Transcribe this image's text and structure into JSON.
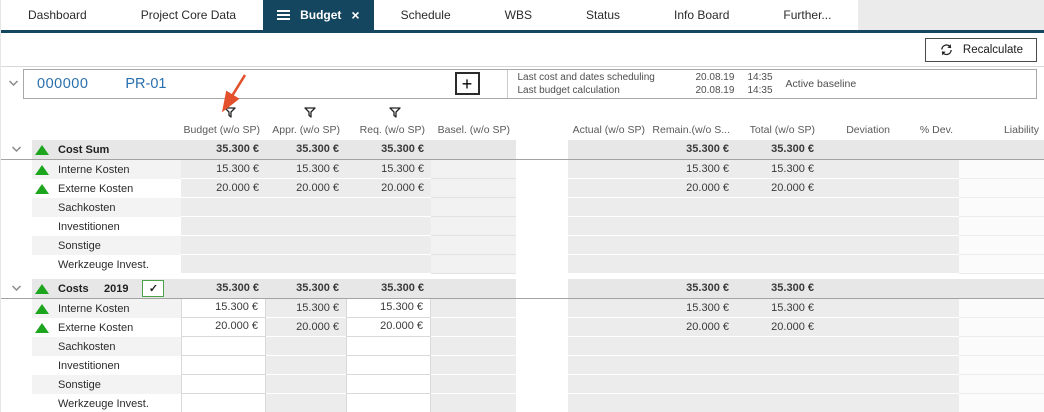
{
  "tab_bar": {
    "tabs": [
      {
        "label": "Dashboard",
        "active": false
      },
      {
        "label": "Project Core Data",
        "active": false
      },
      {
        "label": "Budget",
        "active": true
      },
      {
        "label": "Schedule",
        "active": false
      },
      {
        "label": "WBS",
        "active": false
      },
      {
        "label": "Status",
        "active": false
      },
      {
        "label": "Info Board",
        "active": false
      },
      {
        "label": "Further...",
        "active": false
      }
    ]
  },
  "toolbar": {
    "recalculate_label": "Recalculate"
  },
  "project_bar": {
    "number": "000000",
    "id": "PR-01",
    "info_rows": [
      {
        "label": "Last cost and dates scheduling",
        "date": "20.08.19",
        "time": "14:35"
      },
      {
        "label": "Last budget calculation",
        "date": "20.08.19",
        "time": "14:35"
      }
    ],
    "baseline_label": "Active baseline"
  },
  "glyphs": {
    "plus": "+",
    "check": "✓",
    "close": "×"
  },
  "grid": {
    "columns": [
      {
        "key": "budget",
        "label": "Budget (w/o SP)",
        "filter": true
      },
      {
        "key": "appr",
        "label": "Appr. (w/o SP)",
        "filter": true
      },
      {
        "key": "req",
        "label": "Req. (w/o SP)",
        "filter": true
      },
      {
        "key": "basel",
        "label": "Basel. (w/o SP)",
        "filter": false
      },
      {
        "key": "actual",
        "label": "Actual (w/o SP)",
        "filter": false
      },
      {
        "key": "remain",
        "label": "Remain.(w/o S...",
        "filter": false
      },
      {
        "key": "total",
        "label": "Total (w/o SP)",
        "filter": false
      },
      {
        "key": "deviation",
        "label": "Deviation",
        "filter": false
      },
      {
        "key": "pdev",
        "label": "% Dev.",
        "filter": false
      },
      {
        "key": "liability",
        "label": "Liability",
        "filter": false
      }
    ],
    "groups": [
      {
        "title": "Cost Sum",
        "year": "",
        "has_checkbox": false,
        "checkbox_checked": false,
        "editable": false,
        "totals": {
          "budget": "35.300 €",
          "appr": "35.300 €",
          "req": "35.300 €",
          "basel": "",
          "actual": "",
          "remain": "35.300 €",
          "total": "35.300 €",
          "deviation": "",
          "pdev": "",
          "liability": ""
        },
        "rows": [
          {
            "name": "Interne Kosten",
            "indicator": true,
            "values": {
              "budget": "15.300 €",
              "appr": "15.300 €",
              "req": "15.300 €",
              "remain": "15.300 €",
              "total": "15.300 €"
            }
          },
          {
            "name": "Externe Kosten",
            "indicator": true,
            "values": {
              "budget": "20.000 €",
              "appr": "20.000 €",
              "req": "20.000 €",
              "remain": "20.000 €",
              "total": "20.000 €"
            }
          },
          {
            "name": "Sachkosten",
            "indicator": false,
            "values": {}
          },
          {
            "name": "Investitionen",
            "indicator": false,
            "values": {}
          },
          {
            "name": "Sonstige",
            "indicator": false,
            "values": {}
          },
          {
            "name": "Werkzeuge Invest.",
            "indicator": false,
            "values": {}
          }
        ]
      },
      {
        "title": "Costs",
        "year": "2019",
        "has_checkbox": true,
        "checkbox_checked": true,
        "editable": true,
        "totals": {
          "budget": "35.300 €",
          "appr": "35.300 €",
          "req": "35.300 €",
          "basel": "",
          "actual": "",
          "remain": "35.300 €",
          "total": "35.300 €",
          "deviation": "",
          "pdev": "",
          "liability": ""
        },
        "rows": [
          {
            "name": "Interne Kosten",
            "indicator": true,
            "values": {
              "budget": "15.300 €",
              "appr": "15.300 €",
              "req": "15.300 €",
              "remain": "15.300 €",
              "total": "15.300 €"
            }
          },
          {
            "name": "Externe Kosten",
            "indicator": true,
            "values": {
              "budget": "20.000 €",
              "appr": "20.000 €",
              "req": "20.000 €",
              "remain": "20.000 €",
              "total": "20.000 €"
            }
          },
          {
            "name": "Sachkosten",
            "indicator": false,
            "values": {}
          },
          {
            "name": "Investitionen",
            "indicator": false,
            "values": {}
          },
          {
            "name": "Sonstige",
            "indicator": false,
            "values": {}
          },
          {
            "name": "Werkzeuge Invest.",
            "indicator": false,
            "values": {}
          }
        ]
      }
    ]
  },
  "icons": {
    "filter": "funnel",
    "collapse": "chevron-down",
    "indicator": "triangle-up",
    "recalculate": "refresh-arrows",
    "menu": "hamburger",
    "close": "x",
    "add": "plus"
  },
  "colors": {
    "accent_dark_blue": "#15465f",
    "project_link_blue": "#2a6fad",
    "indicator_green": "#1ea51e",
    "annotation_arrow": "#e2512b"
  }
}
